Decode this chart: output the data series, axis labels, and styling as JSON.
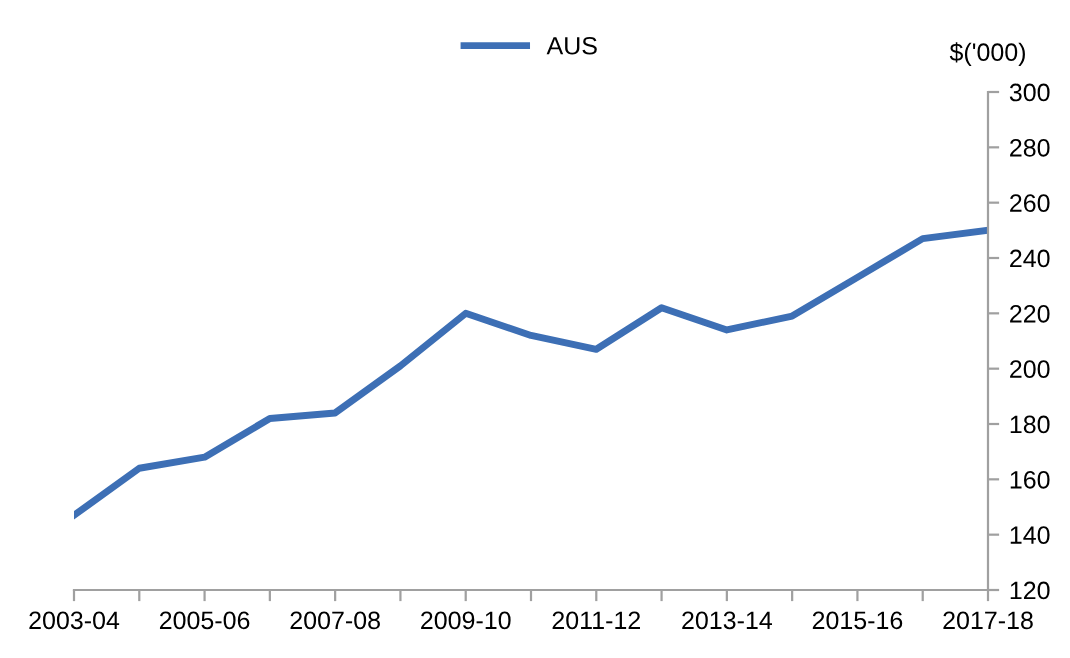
{
  "chart_data": {
    "type": "line",
    "ylabel": "$('000)",
    "categories": [
      "2003-04",
      null,
      "2005-06",
      null,
      "2007-08",
      null,
      "2009-10",
      null,
      "2011-12",
      null,
      "2013-14",
      null,
      "2015-16",
      null,
      "2017-18"
    ],
    "series": [
      {
        "name": "AUS",
        "color": "#3d6fb5",
        "values": [
          147,
          164,
          168,
          182,
          184,
          201,
          220,
          212,
          207,
          222,
          214,
          219,
          233,
          247,
          250
        ]
      }
    ],
    "ylim": [
      120,
      300
    ],
    "yticks": [
      120,
      140,
      160,
      180,
      200,
      220,
      240,
      260,
      280,
      300
    ],
    "grid": false,
    "legend": "top",
    "marker": "none",
    "line_style": "solid"
  }
}
